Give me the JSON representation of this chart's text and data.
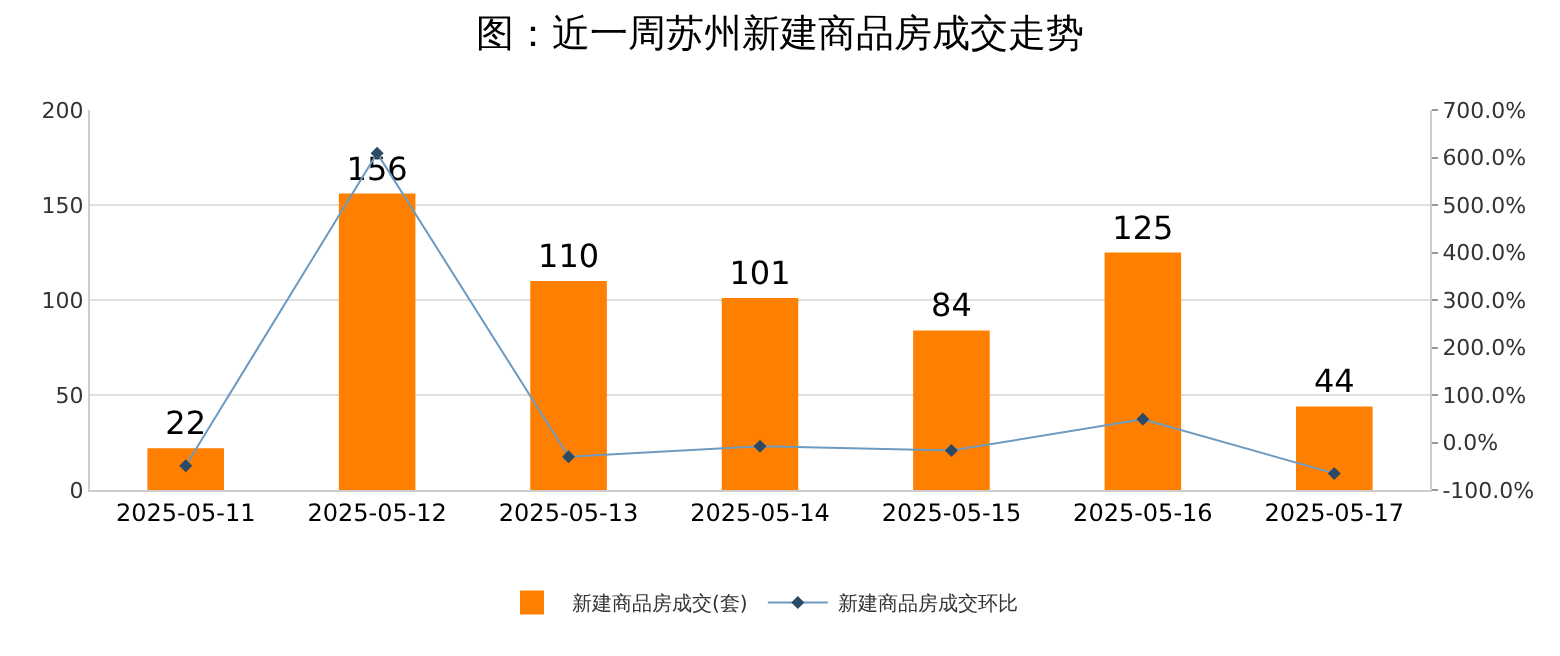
{
  "chart_data": {
    "type": "bar",
    "title": "图：近一周苏州新建商品房成交走势",
    "categories": [
      "2025-05-11",
      "2025-05-12",
      "2025-05-13",
      "2025-05-14",
      "2025-05-15",
      "2025-05-16",
      "2025-05-17"
    ],
    "series": [
      {
        "name": "新建商品房成交(套)",
        "color": "#ff8000",
        "values": [
          22,
          156,
          110,
          101,
          84,
          125,
          44
        ],
        "value_labels": [
          "22",
          "156",
          "110",
          "101",
          "84",
          "125",
          "44"
        ]
      },
      {
        "name": "新建商品房成交环比",
        "type": "line",
        "axis": "y2",
        "color": "#6f9ac0",
        "marker": "diamond",
        "values": [
          -49,
          609,
          -30,
          -8,
          -17,
          49,
          -65
        ]
      }
    ],
    "ylim": [
      0,
      200
    ],
    "yticks": [
      0,
      50,
      100,
      150,
      200
    ],
    "y2lim": [
      -100,
      700
    ],
    "y2ticks": [
      {
        "value": -100,
        "label": "-100.0%"
      },
      {
        "value": 0,
        "label": "0.0%"
      },
      {
        "value": 100,
        "label": "100.0%"
      },
      {
        "value": 200,
        "label": "200.0%"
      },
      {
        "value": 300,
        "label": "300.0%"
      },
      {
        "value": 400,
        "label": "400.0%"
      },
      {
        "value": 500,
        "label": "500.0%"
      },
      {
        "value": 600,
        "label": "600.0%"
      },
      {
        "value": 700,
        "label": "700.0%"
      }
    ],
    "grid": "y",
    "legend": "bottom"
  }
}
